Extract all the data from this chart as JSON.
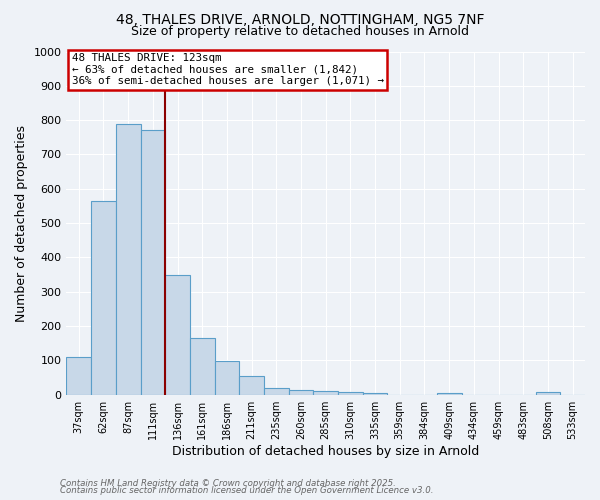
{
  "title_line1": "48, THALES DRIVE, ARNOLD, NOTTINGHAM, NG5 7NF",
  "title_line2": "Size of property relative to detached houses in Arnold",
  "xlabel": "Distribution of detached houses by size in Arnold",
  "ylabel": "Number of detached properties",
  "categories": [
    "37sqm",
    "62sqm",
    "87sqm",
    "111sqm",
    "136sqm",
    "161sqm",
    "186sqm",
    "211sqm",
    "235sqm",
    "260sqm",
    "285sqm",
    "310sqm",
    "335sqm",
    "359sqm",
    "384sqm",
    "409sqm",
    "434sqm",
    "459sqm",
    "483sqm",
    "508sqm",
    "533sqm"
  ],
  "values": [
    110,
    565,
    790,
    770,
    350,
    165,
    97,
    55,
    20,
    14,
    10,
    8,
    5,
    0,
    0,
    5,
    0,
    0,
    0,
    8,
    0
  ],
  "bar_color": "#c8d8e8",
  "bar_edge_color": "#5a9ec9",
  "vline_color": "#8b0000",
  "annotation_text": "48 THALES DRIVE: 123sqm\n← 63% of detached houses are smaller (1,842)\n36% of semi-detached houses are larger (1,071) →",
  "annotation_box_color": "#ffffff",
  "annotation_border_color": "#cc0000",
  "ylim": [
    0,
    1000
  ],
  "yticks": [
    0,
    100,
    200,
    300,
    400,
    500,
    600,
    700,
    800,
    900,
    1000
  ],
  "bg_color": "#eef2f7",
  "footer_line1": "Contains HM Land Registry data © Crown copyright and database right 2025.",
  "footer_line2": "Contains public sector information licensed under the Open Government Licence v3.0.",
  "grid_color": "#ffffff",
  "title_fontsize": 10,
  "subtitle_fontsize": 9
}
